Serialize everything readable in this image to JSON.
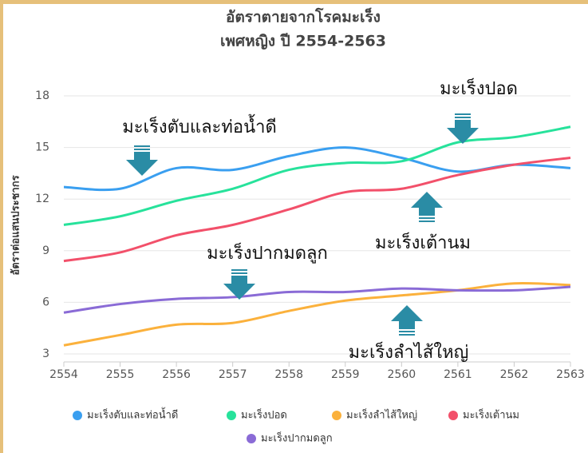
{
  "chart_data": {
    "type": "line",
    "title": "อัตราตายจากโรคมะเร็ง",
    "subtitle": "เพศหญิง ปี 2554-2563",
    "y_label": "อัตราต่อแสนประชากร",
    "x": [
      2554,
      2555,
      2556,
      2557,
      2558,
      2559,
      2560,
      2561,
      2562,
      2563
    ],
    "xlim": [
      2554,
      2563
    ],
    "xticks": [
      2554,
      2555,
      2556,
      2557,
      2558,
      2559,
      2560,
      2561,
      2562,
      2563
    ],
    "ylim": [
      3,
      18
    ],
    "yticks": [
      3,
      6,
      9,
      12,
      15,
      18
    ],
    "grid": true,
    "smooth": true,
    "legend": "bottom",
    "series": [
      {
        "name": "มะเร็งตับและท่อน้ำดี",
        "color": "#3a9ff0",
        "values": [
          12.7,
          12.6,
          13.8,
          13.7,
          14.5,
          15.0,
          14.4,
          13.6,
          14.0,
          13.8
        ]
      },
      {
        "name": "มะเร็งปอด",
        "color": "#27e29b",
        "values": [
          10.5,
          11.0,
          11.9,
          12.6,
          13.7,
          14.1,
          14.2,
          15.3,
          15.6,
          16.2
        ]
      },
      {
        "name": "มะเร็งลำไส้ใหญ่",
        "color": "#fbb13c",
        "values": [
          3.5,
          4.1,
          4.7,
          4.8,
          5.5,
          6.1,
          6.4,
          6.7,
          7.1,
          7.0
        ]
      },
      {
        "name": "มะเร็งเต้านม",
        "color": "#f2506a",
        "values": [
          8.4,
          8.9,
          9.9,
          10.5,
          11.4,
          12.4,
          12.6,
          13.4,
          14.0,
          14.4
        ]
      },
      {
        "name": "มะเร็งปากมดลูก",
        "color": "#8a6bd6",
        "values": [
          5.4,
          5.9,
          6.2,
          6.3,
          6.6,
          6.6,
          6.8,
          6.7,
          6.7,
          6.9
        ]
      }
    ],
    "annotations": [
      {
        "text": "มะเร็งตับและท่อน้ำดี",
        "arrow": "down"
      },
      {
        "text": "มะเร็งปอด",
        "arrow": "down"
      },
      {
        "text": "มะเร็งปากมดลูก",
        "arrow": "down"
      },
      {
        "text": "มะเร็งเต้านม",
        "arrow": "up"
      },
      {
        "text": "มะเร็งลำไส้ใหญ่",
        "arrow": "up"
      }
    ]
  }
}
